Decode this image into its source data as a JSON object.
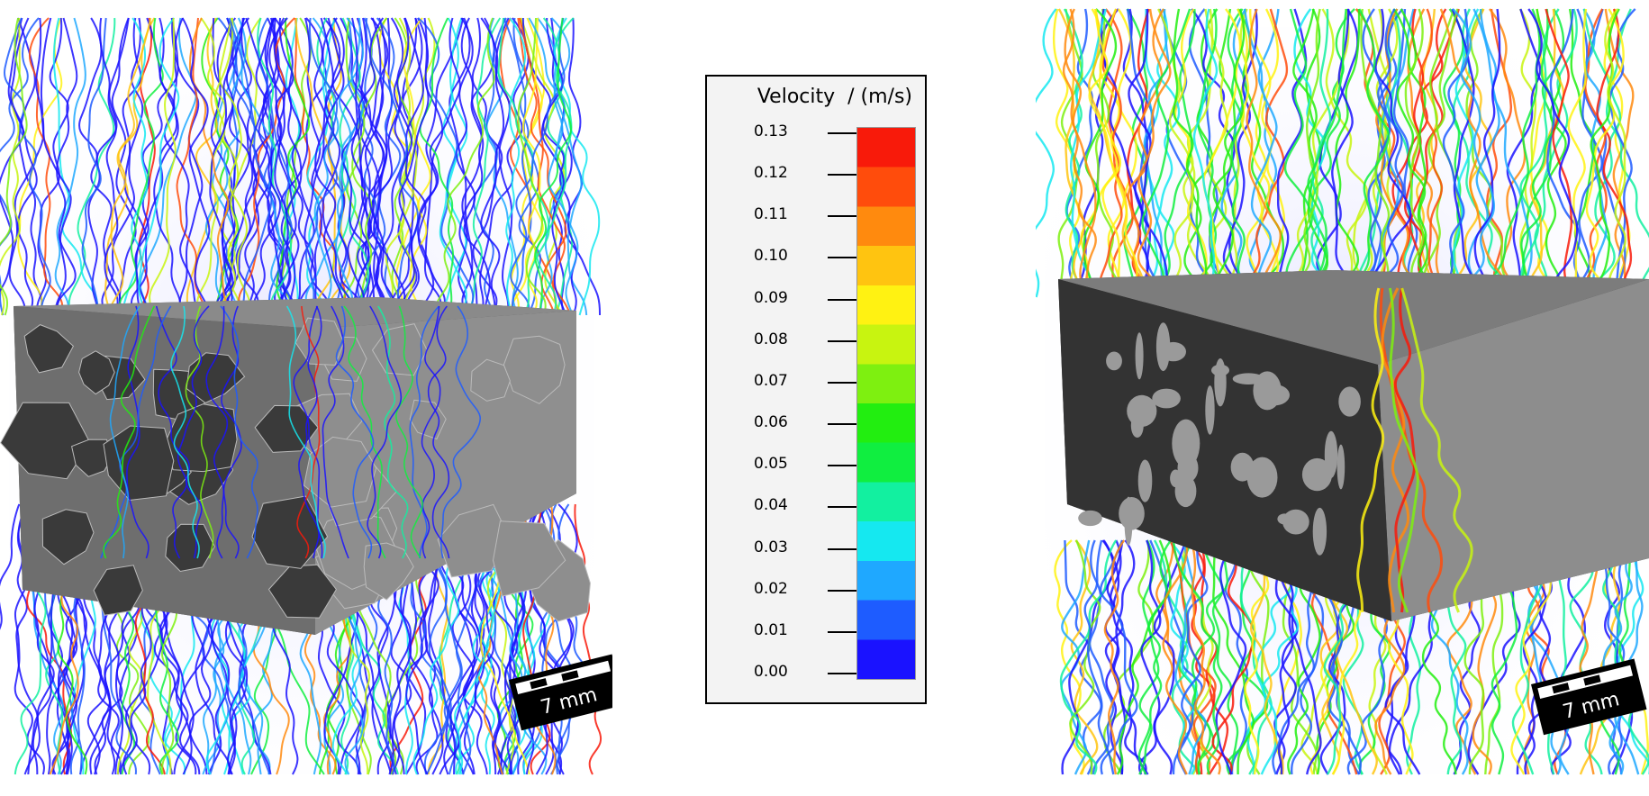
{
  "colorbar": {
    "title": "Velocity  / (m/s)",
    "ticks": [
      "0.13",
      "0.12",
      "0.11",
      "0.10",
      "0.09",
      "0.08",
      "0.07",
      "0.06",
      "0.05",
      "0.04",
      "0.03",
      "0.02",
      "0.01",
      "0.00"
    ],
    "min": 0.0,
    "max": 0.13,
    "stops": [
      "#1a12ff",
      "#1e5cff",
      "#1fa8ff",
      "#15e8f0",
      "#12f0a0",
      "#10ee40",
      "#22ee10",
      "#7ef010",
      "#c8f410",
      "#fff212",
      "#ffc410",
      "#ff8a0e",
      "#ff4c0c",
      "#f81a0a"
    ]
  },
  "scale_bars": {
    "left": {
      "label": "7 mm"
    },
    "right": {
      "label": "7 mm"
    }
  },
  "colors": {
    "grain_dark": "#3a3a3a",
    "grain_light": "#8e8e8e",
    "glow": "#c8c8ff"
  }
}
